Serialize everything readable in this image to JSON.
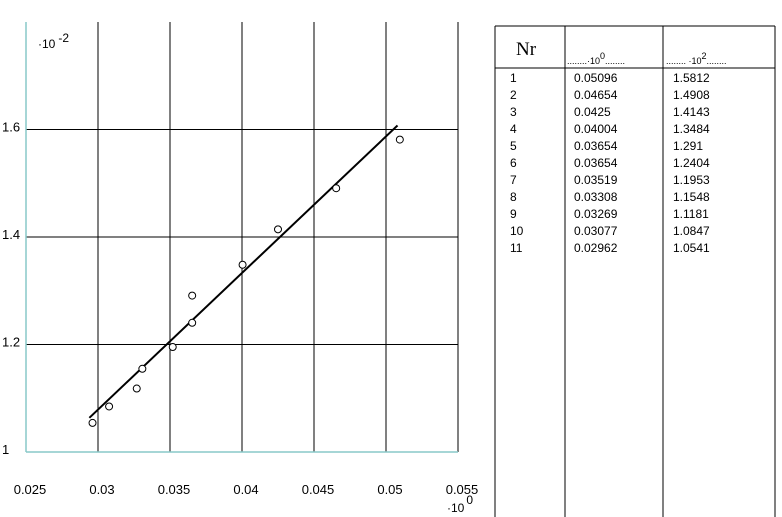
{
  "chart_data": {
    "type": "scatter",
    "x": [
      0.05096,
      0.04654,
      0.0425,
      0.04004,
      0.03654,
      0.03654,
      0.03519,
      0.03308,
      0.03269,
      0.03077,
      0.02962
    ],
    "y": [
      1.5812,
      1.4908,
      1.4143,
      1.3484,
      1.291,
      1.2404,
      1.1953,
      1.1548,
      1.1181,
      1.0847,
      1.0541
    ],
    "fit_line": {
      "x": [
        0.0294,
        0.0508
      ],
      "y": [
        1.0636,
        1.6075
      ],
      "color": "#000000"
    },
    "xlim": [
      0.025,
      0.055
    ],
    "ylim": [
      1,
      1.8
    ],
    "xticks": [
      0.025,
      0.03,
      0.035,
      0.04,
      0.045,
      0.05,
      0.055
    ],
    "yticks": [
      1,
      1.2,
      1.4,
      1.6
    ],
    "grid": true,
    "axis_color": "#88c8c8",
    "marker_color": "#000000",
    "y_multiplier": {
      "base": "·10",
      "exponent": "-2"
    },
    "x_multiplier": {
      "base": "·10",
      "exponent": "0"
    }
  },
  "table": {
    "header": {
      "nr": "Nr",
      "col1": {
        "pre": "........·10",
        "sup": "0",
        "post": "........"
      },
      "col2": {
        "pre": "........ ·10",
        "sup": "2",
        "post": "........"
      }
    },
    "rows": [
      [
        "1",
        "0.05096",
        "1.5812"
      ],
      [
        "2",
        "0.04654",
        "1.4908"
      ],
      [
        "3",
        "0.0425",
        "1.4143"
      ],
      [
        "4",
        "0.04004",
        "1.3484"
      ],
      [
        "5",
        "0.03654",
        "1.291"
      ],
      [
        "6",
        "0.03654",
        "1.2404"
      ],
      [
        "7",
        "0.03519",
        "1.1953"
      ],
      [
        "8",
        "0.03308",
        "1.1548"
      ],
      [
        "9",
        "0.03269",
        "1.1181"
      ],
      [
        "10",
        "0.03077",
        "1.0847"
      ],
      [
        "11",
        "0.02962",
        "1.0541"
      ]
    ]
  }
}
